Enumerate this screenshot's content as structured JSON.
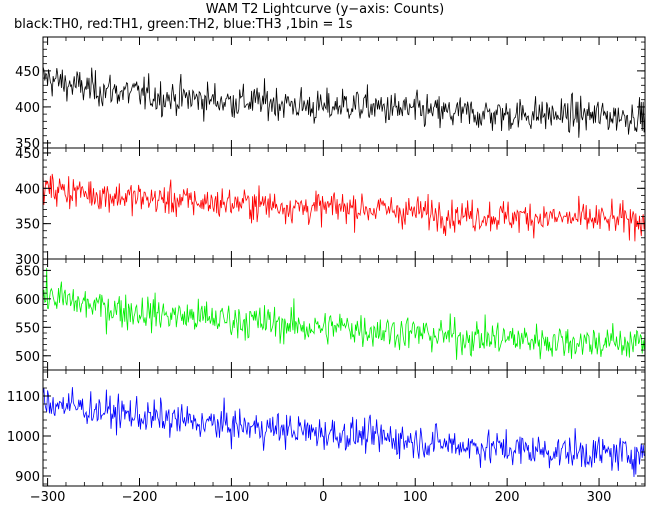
{
  "header": {
    "title": "WAM T2 Lightcurve (y−axis: Counts)",
    "subtitle": "black:TH0, red:TH1, green:TH2, blue:TH3 ,1bin = 1s"
  },
  "chart_data": {
    "type": "line",
    "title": "WAM T2 Lightcurve (y−axis: Counts)",
    "subtitle": "black:TH0, red:TH1, green:TH2, blue:TH3 ,1bin = 1s",
    "xlabel": "",
    "ylabel": "Counts",
    "xlim": [
      -305,
      350
    ],
    "x_ticks": [
      -300,
      -200,
      -100,
      0,
      100,
      200,
      300
    ],
    "x_tick_labels": [
      "−300",
      "−200",
      "−100",
      "0",
      "100",
      "200",
      "300"
    ],
    "bin_seconds": 1,
    "grid": false,
    "series": [
      {
        "name": "TH0",
        "color": "#000000",
        "ylim": [
          343,
          497
        ],
        "y_ticks": [
          350,
          400,
          450
        ],
        "x": [
          -300,
          -275,
          -250,
          -225,
          -200,
          -175,
          -150,
          -125,
          -100,
          -75,
          -50,
          -25,
          0,
          25,
          50,
          75,
          100,
          125,
          150,
          175,
          200,
          225,
          250,
          275,
          300,
          325,
          345
        ],
        "values": [
          440,
          430,
          425,
          422,
          418,
          414,
          412,
          410,
          408,
          407,
          406,
          402,
          398,
          404,
          400,
          397,
          395,
          392,
          391,
          390,
          389,
          390,
          389,
          388,
          388,
          387,
          388
        ],
        "noise_sigma": 17
      },
      {
        "name": "TH1",
        "color": "#ff0000",
        "ylim": [
          300,
          457
        ],
        "y_ticks": [
          300,
          350,
          400,
          450
        ],
        "x": [
          -300,
          -275,
          -250,
          -225,
          -200,
          -175,
          -150,
          -125,
          -100,
          -75,
          -50,
          -25,
          0,
          25,
          50,
          75,
          100,
          125,
          150,
          175,
          200,
          225,
          250,
          275,
          300,
          325,
          345
        ],
        "values": [
          400,
          396,
          392,
          389,
          386,
          384,
          382,
          380,
          379,
          378,
          376,
          373,
          372,
          374,
          371,
          369,
          367,
          364,
          362,
          361,
          360,
          360,
          358,
          357,
          356,
          355,
          356
        ],
        "noise_sigma": 16
      },
      {
        "name": "TH2",
        "color": "#00ee00",
        "ylim": [
          475,
          670
        ],
        "y_ticks": [
          500,
          550,
          600,
          650
        ],
        "x": [
          -300,
          -275,
          -250,
          -225,
          -200,
          -175,
          -150,
          -125,
          -100,
          -75,
          -50,
          -25,
          0,
          25,
          50,
          75,
          100,
          125,
          150,
          175,
          200,
          225,
          250,
          275,
          300,
          325,
          345
        ],
        "values": [
          605,
          595,
          588,
          582,
          577,
          573,
          569,
          566,
          563,
          560,
          557,
          552,
          548,
          551,
          546,
          543,
          540,
          536,
          533,
          531,
          530,
          528,
          526,
          525,
          524,
          523,
          524
        ],
        "noise_sigma": 22
      },
      {
        "name": "TH3",
        "color": "#0000ff",
        "ylim": [
          875,
          1165
        ],
        "y_ticks": [
          900,
          1000,
          1100
        ],
        "x": [
          -300,
          -275,
          -250,
          -225,
          -200,
          -175,
          -150,
          -125,
          -100,
          -75,
          -50,
          -25,
          0,
          25,
          50,
          75,
          100,
          125,
          150,
          175,
          200,
          225,
          250,
          275,
          300,
          325,
          345
        ],
        "values": [
          1085,
          1075,
          1066,
          1058,
          1050,
          1043,
          1037,
          1031,
          1026,
          1021,
          1017,
          1012,
          1008,
          1004,
          999,
          994,
          988,
          982,
          977,
          972,
          968,
          965,
          962,
          959,
          957,
          955,
          956
        ],
        "noise_sigma": 30
      }
    ]
  }
}
